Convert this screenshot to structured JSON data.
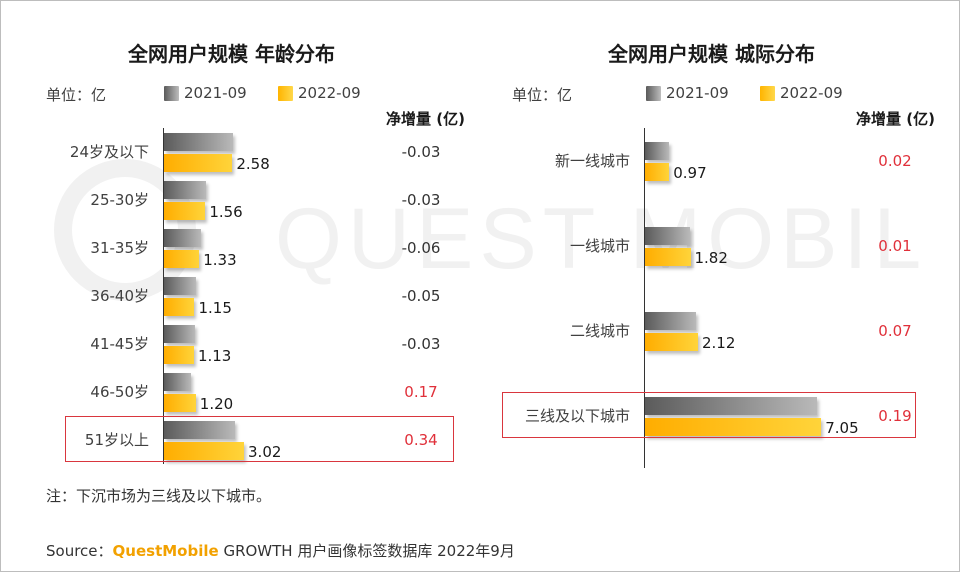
{
  "colors": {
    "series_2021": "#8a8a8a",
    "series_2022": "#ffc21a",
    "negative_text": "#333333",
    "positive_text": "#e0303a",
    "highlight": "#d9363e"
  },
  "legend": {
    "s1": "2021-09",
    "s2": "2022-09"
  },
  "watermark": "QUEST MOBILE",
  "chart_data": [
    {
      "type": "bar",
      "title": "全网用户规模 年龄分布",
      "unit_label": "单位：亿",
      "net_header": "净增量 (亿)",
      "categories": [
        "24岁及以下",
        "25-30岁",
        "31-35岁",
        "36-40岁",
        "41-45岁",
        "46-50岁",
        "51岁以上"
      ],
      "series": [
        {
          "name": "2021-09",
          "values": [
            2.61,
            1.59,
            1.39,
            1.2,
            1.16,
            1.03,
            2.68
          ]
        },
        {
          "name": "2022-09",
          "values": [
            2.58,
            1.56,
            1.33,
            1.15,
            1.13,
            1.2,
            3.02
          ]
        }
      ],
      "value_labels": [
        "2.58",
        "1.56",
        "1.33",
        "1.15",
        "1.13",
        "1.20",
        "3.02"
      ],
      "net_increase": [
        "-0.03",
        "-0.03",
        "-0.06",
        "-0.05",
        "-0.03",
        "0.17",
        "0.34"
      ],
      "highlight_index": 6
    },
    {
      "type": "bar",
      "title": "全网用户规模 城际分布",
      "unit_label": "单位：亿",
      "net_header": "净增量 (亿)",
      "categories": [
        "新一线城市",
        "一线城市",
        "二线城市",
        "三线及以下城市"
      ],
      "series": [
        {
          "name": "2021-09",
          "values": [
            0.95,
            1.81,
            2.05,
            6.86
          ]
        },
        {
          "name": "2022-09",
          "values": [
            0.97,
            1.82,
            2.12,
            7.05
          ]
        }
      ],
      "value_labels": [
        "0.97",
        "1.82",
        "2.12",
        "7.05"
      ],
      "net_increase": [
        "0.02",
        "0.01",
        "0.07",
        "0.19"
      ],
      "highlight_index": 3
    }
  ],
  "note": "注：下沉市场为三线及以下城市。",
  "source": {
    "prefix": "Source：",
    "brand": "QuestMobile",
    "rest": " GROWTH 用户画像标签数据库 2022年9月"
  }
}
